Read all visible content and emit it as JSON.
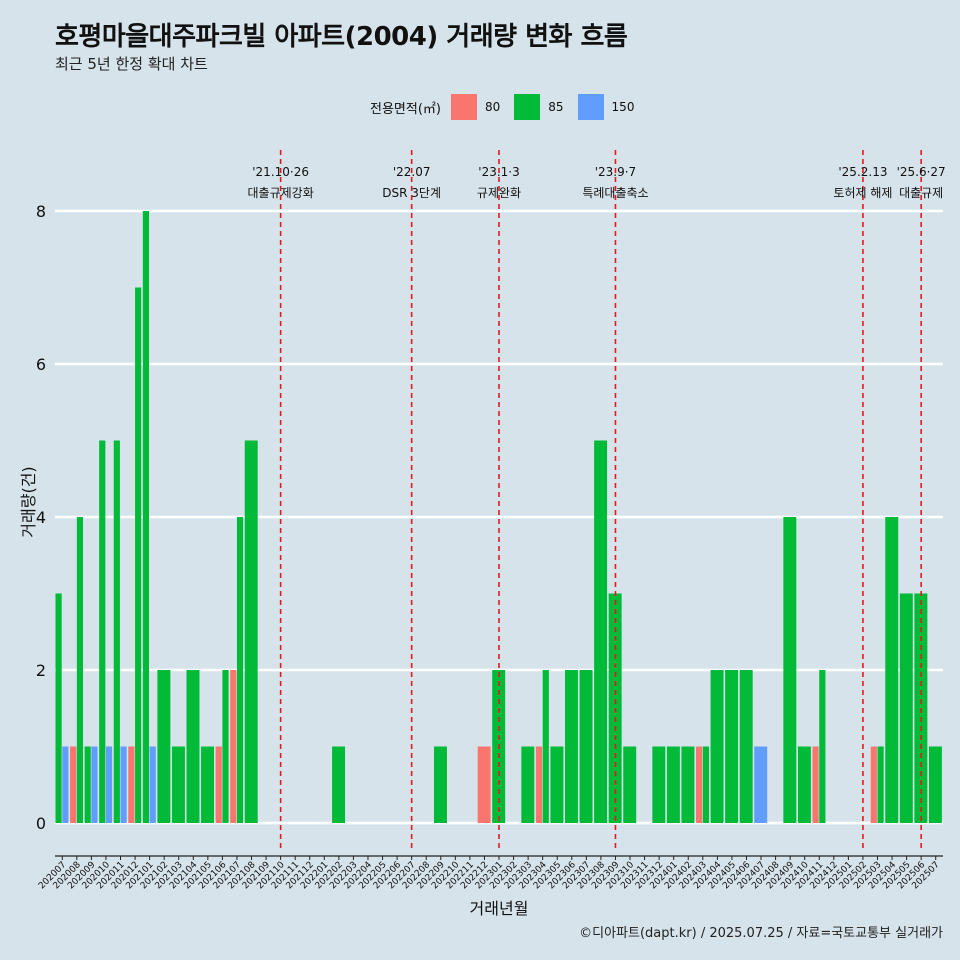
{
  "title": "호평마을대주파크빌 아파트(2004) 거래량 변화 흐름",
  "subtitle": "최근 5년 한정 확대 차트",
  "caption": "©디아파트(dapt.kr) / 2025.07.25 / 자료=국토교통부 실거래가",
  "legend": {
    "title": "전용면적(㎡)",
    "items": [
      {
        "label": "80",
        "color": "#f8766d"
      },
      {
        "label": "85",
        "color": "#00ba38"
      },
      {
        "label": "150",
        "color": "#619cff"
      }
    ]
  },
  "chart_data": {
    "type": "bar",
    "title": "호평마을대주파크빌 아파트(2004) 거래량 변화 흐름",
    "subtitle": "최근 5년 한정 확대 차트",
    "xlabel": "거래년월",
    "ylabel": "거래량(건)",
    "ylim": [
      0,
      8
    ],
    "yticks": [
      0,
      2,
      4,
      6,
      8
    ],
    "grid": true,
    "legend_position": "top",
    "months": [
      "202007",
      "202008",
      "202009",
      "202010",
      "202011",
      "202012",
      "202101",
      "202102",
      "202103",
      "202104",
      "202105",
      "202106",
      "202107",
      "202108",
      "202109",
      "202110",
      "202111",
      "202112",
      "202201",
      "202202",
      "202203",
      "202204",
      "202205",
      "202206",
      "202207",
      "202208",
      "202209",
      "202210",
      "202211",
      "202212",
      "202301",
      "202302",
      "202303",
      "202304",
      "202305",
      "202306",
      "202307",
      "202308",
      "202309",
      "202310",
      "202311",
      "202312",
      "202401",
      "202402",
      "202403",
      "202404",
      "202405",
      "202406",
      "202407",
      "202408",
      "202409",
      "202410",
      "202411",
      "202412",
      "202501",
      "202502",
      "202503",
      "202504",
      "202505",
      "202506",
      "202507"
    ],
    "series": [
      {
        "name": "80",
        "color": "#f8766d",
        "sparse": {
          "202008": 1,
          "202012": 1,
          "202106": 1,
          "202107": 2,
          "202212": 1,
          "202304": 1,
          "202403": 1,
          "202411": 1,
          "202503": 1
        }
      },
      {
        "name": "85",
        "color": "#00ba38",
        "sparse": {
          "202007": 3,
          "202008": 4,
          "202009": 1,
          "202010": 5,
          "202011": 5,
          "202012": 7,
          "202101": 8,
          "202102": 2,
          "202103": 1,
          "202104": 2,
          "202105": 1,
          "202106": 2,
          "202107": 4,
          "202108": 5,
          "202202": 1,
          "202209": 1,
          "202301": 2,
          "202303": 1,
          "202304": 2,
          "202305": 1,
          "202306": 2,
          "202307": 2,
          "202308": 5,
          "202309": 3,
          "202310": 1,
          "202312": 1,
          "202401": 1,
          "202402": 1,
          "202403": 1,
          "202404": 2,
          "202405": 2,
          "202406": 2,
          "202409": 4,
          "202410": 1,
          "202411": 2,
          "202503": 1,
          "202504": 4,
          "202505": 3,
          "202506": 3,
          "202507": 1
        }
      },
      {
        "name": "150",
        "color": "#619cff",
        "sparse": {
          "202007": 1,
          "202009": 1,
          "202010": 1,
          "202011": 1,
          "202101": 1,
          "202407": 1
        }
      }
    ],
    "events": [
      {
        "month": "202110",
        "date_label": "'21.10·26",
        "label": "대출규제강화",
        "color": "#e41a1c"
      },
      {
        "month": "202207",
        "date_label": "'22.07",
        "label": "DSR 3단계",
        "color": "#e41a1c"
      },
      {
        "month": "202301",
        "date_label": "'23.1·3",
        "label": "규제완화",
        "color": "#e41a1c"
      },
      {
        "month": "202309",
        "date_label": "'23.9·7",
        "label": "특례대출축소",
        "color": "#e41a1c"
      },
      {
        "month": "202502",
        "date_label": "'25.2.13",
        "label": "토허제 해제",
        "color": "#e41a1c"
      },
      {
        "month": "202506",
        "date_label": "'25.6·27",
        "label": "대출규제",
        "color": "#e41a1c"
      }
    ]
  }
}
